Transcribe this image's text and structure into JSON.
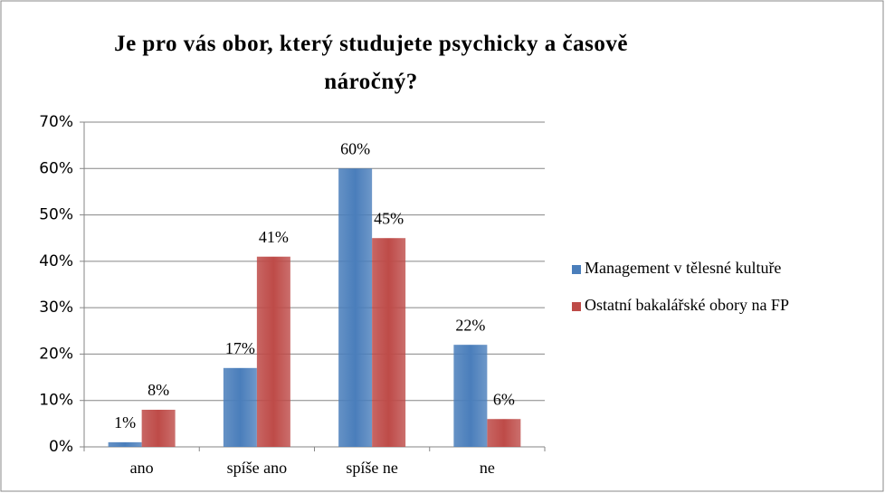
{
  "chart_data": {
    "type": "bar",
    "title": "Je pro vás obor, který studujete psychicky a časově náročný?",
    "categories": [
      "ano",
      "spíše ano",
      "spíše ne",
      "ne"
    ],
    "series": [
      {
        "name": "Management v tělesné kultuře",
        "color": "#4a7ebb",
        "values": [
          1,
          17,
          60,
          22
        ],
        "value_labels": [
          "1%",
          "17%",
          "60%",
          "22%"
        ]
      },
      {
        "name": "Ostatní bakalářské obory na FP",
        "color": "#be4b48",
        "values": [
          8,
          41,
          45,
          6
        ],
        "value_labels": [
          "8%",
          "41%",
          "45%",
          "6%"
        ]
      }
    ],
    "ylim": [
      0,
      70
    ],
    "yticks": [
      {
        "value": 0,
        "label": "0%"
      },
      {
        "value": 10,
        "label": "10%"
      },
      {
        "value": 20,
        "label": "20%"
      },
      {
        "value": 30,
        "label": "30%"
      },
      {
        "value": 40,
        "label": "40%"
      },
      {
        "value": 50,
        "label": "50%"
      },
      {
        "value": 60,
        "label": "60%"
      },
      {
        "value": 70,
        "label": "70%"
      }
    ],
    "grid": true,
    "legend": "right"
  }
}
